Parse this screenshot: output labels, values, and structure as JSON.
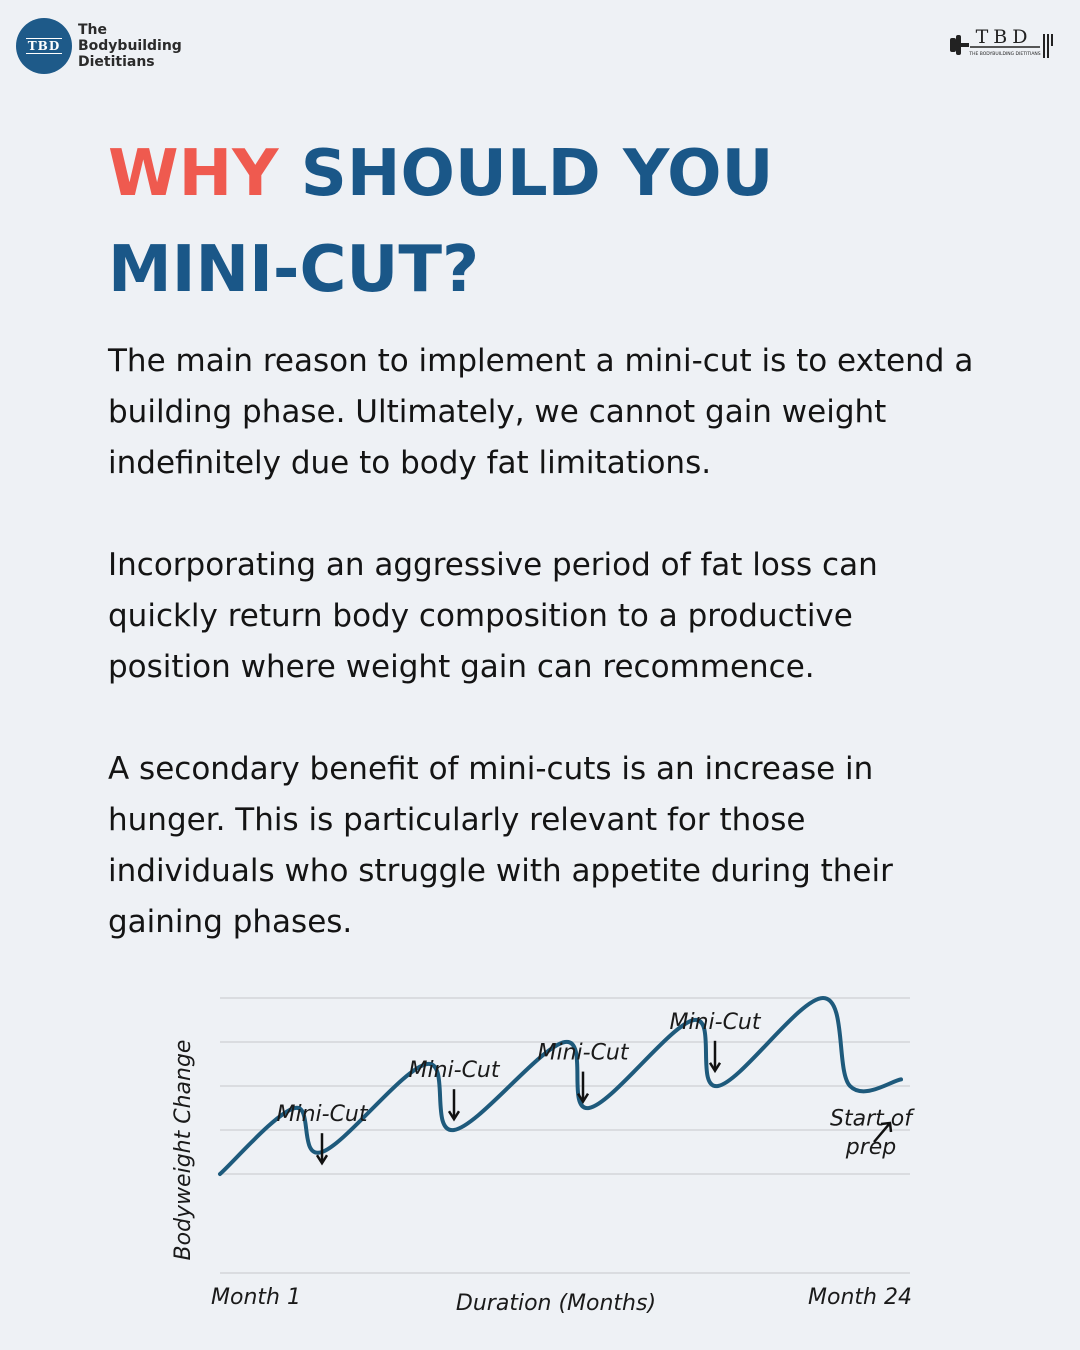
{
  "brand": {
    "logo_text": "TBD",
    "name_lines": [
      "The",
      "Bodybuilding",
      "Dietitians"
    ],
    "right_logo_text": "TBD",
    "right_logo_subtext": "THE BODYBUILDING DIETITIANS",
    "color": "#1e5a89"
  },
  "title": {
    "accent_word": "WHY",
    "line1_rest": "SHOULD YOU",
    "line2": "MINI-CUT?",
    "accent_color": "#ef5a4f",
    "main_color": "#1a5788"
  },
  "paragraphs": [
    "The main reason to implement a mini-cut is to extend a building phase. Ultimately, we cannot gain weight indefinitely due to body fat limitations.",
    "Incorporating an aggressive period of fat loss can quickly return body composition to a productive position where weight gain can recommence.",
    "A secondary benefit of mini-cuts is an increase in hunger. This is particularly relevant for those individuals who struggle with appetite during their gaining phases."
  ],
  "chart_data": {
    "type": "line",
    "title": "",
    "xlabel": "Duration (Months)",
    "ylabel": "Bodyweight Change",
    "x_tick_labels": [
      "Month 1",
      "Month 24"
    ],
    "xlim": [
      1,
      24
    ],
    "ylim": [
      0,
      5
    ],
    "grid": true,
    "line_color": "#1e5a7c",
    "series": [
      {
        "x": [
          1,
          3.5,
          4.4,
          7.9,
          8.8,
          12.5,
          13.3,
          16.8,
          17.6,
          21.1,
          22.0,
          23.7
        ],
        "values": [
          1.0,
          2.5,
          1.5,
          3.5,
          2.0,
          4.0,
          2.5,
          4.5,
          3.0,
          5.0,
          3.0,
          3.15
        ]
      }
    ],
    "annotations": [
      {
        "text": "Mini-Cut",
        "x": 4.4,
        "y": 2.2
      },
      {
        "text": "Mini-Cut",
        "x": 8.8,
        "y": 3.2
      },
      {
        "text": "Mini-Cut",
        "x": 13.1,
        "y": 3.6
      },
      {
        "text": "Mini-Cut",
        "x": 17.5,
        "y": 4.3
      },
      {
        "text": "Start of",
        "x": 22.7,
        "y": 2.1
      },
      {
        "text": "prep",
        "x": 22.7,
        "y": 1.45
      }
    ]
  }
}
